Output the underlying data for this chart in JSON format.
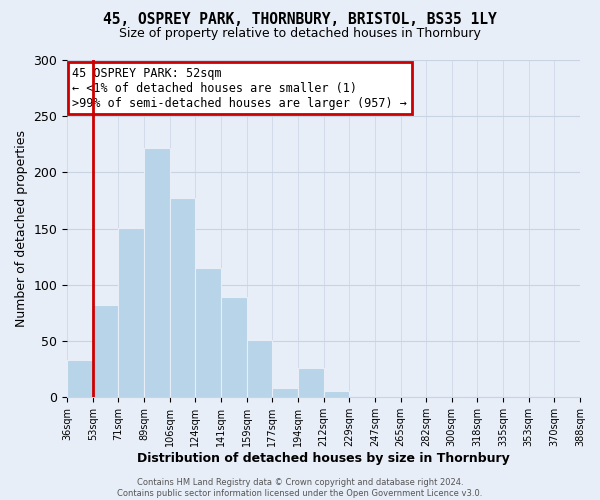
{
  "title": "45, OSPREY PARK, THORNBURY, BRISTOL, BS35 1LY",
  "subtitle": "Size of property relative to detached houses in Thornbury",
  "xlabel": "Distribution of detached houses by size in Thornbury",
  "ylabel": "Number of detached properties",
  "bar_labels": [
    "36sqm",
    "53sqm",
    "71sqm",
    "89sqm",
    "106sqm",
    "124sqm",
    "141sqm",
    "159sqm",
    "177sqm",
    "194sqm",
    "212sqm",
    "229sqm",
    "247sqm",
    "265sqm",
    "282sqm",
    "300sqm",
    "318sqm",
    "335sqm",
    "353sqm",
    "370sqm",
    "388sqm"
  ],
  "bar_values": [
    33,
    82,
    151,
    222,
    177,
    115,
    89,
    51,
    8,
    26,
    6,
    0,
    1,
    0,
    0,
    0,
    0,
    0,
    0,
    1
  ],
  "bar_color": "#b8d4e8",
  "highlight_color": "#cc0000",
  "ylim": [
    0,
    300
  ],
  "yticks": [
    0,
    50,
    100,
    150,
    200,
    250,
    300
  ],
  "annotation_title": "45 OSPREY PARK: 52sqm",
  "annotation_line1": "← <1% of detached houses are smaller (1)",
  "annotation_line2": ">99% of semi-detached houses are larger (957) →",
  "annotation_box_color": "#ffffff",
  "annotation_border_color": "#cc0000",
  "footer_line1": "Contains HM Land Registry data © Crown copyright and database right 2024.",
  "footer_line2": "Contains public sector information licensed under the Open Government Licence v3.0.",
  "background_color": "#e8eef8",
  "grid_color": "#c8d4e4"
}
